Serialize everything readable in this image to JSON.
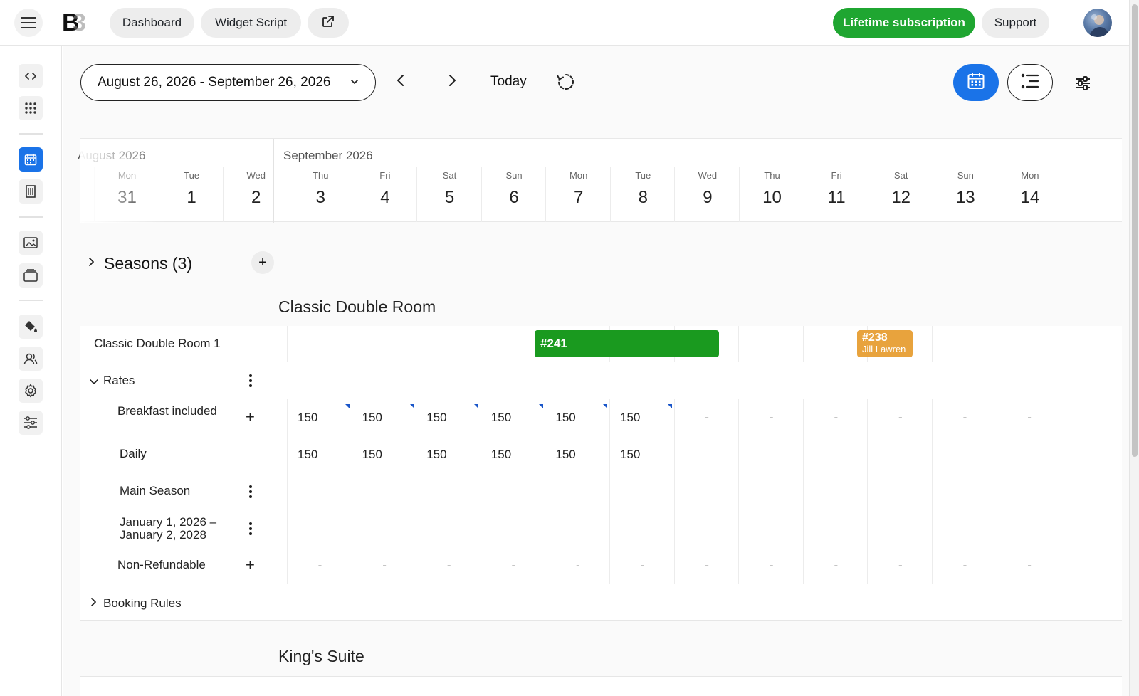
{
  "topbar": {
    "dashboard_label": "Dashboard",
    "widget_label": "Widget Script",
    "subscription_label": "Lifetime subscription",
    "support_label": "Support"
  },
  "toolbar": {
    "date_range": "August 26, 2026 - September 26, 2026",
    "today_label": "Today"
  },
  "calendar": {
    "months": [
      "August 2026",
      "September 2026"
    ],
    "days": [
      {
        "dow": "Mon",
        "num": "31"
      },
      {
        "dow": "Tue",
        "num": "1"
      },
      {
        "dow": "Wed",
        "num": "2"
      },
      {
        "dow": "Thu",
        "num": "3"
      },
      {
        "dow": "Fri",
        "num": "4"
      },
      {
        "dow": "Sat",
        "num": "5"
      },
      {
        "dow": "Sun",
        "num": "6"
      },
      {
        "dow": "Mon",
        "num": "7"
      },
      {
        "dow": "Tue",
        "num": "8"
      },
      {
        "dow": "Wed",
        "num": "9"
      },
      {
        "dow": "Thu",
        "num": "10"
      },
      {
        "dow": "Fri",
        "num": "11"
      },
      {
        "dow": "Sat",
        "num": "12"
      },
      {
        "dow": "Sun",
        "num": "13"
      },
      {
        "dow": "Mon",
        "num": "14"
      }
    ]
  },
  "seasons": {
    "label": "Seasons (3)",
    "add": "+"
  },
  "rooms": [
    {
      "title": "Classic Double Room"
    },
    {
      "title": "King's Suite"
    }
  ],
  "unit": {
    "name": "Classic Double Room 1"
  },
  "bookings": [
    {
      "id": "#241",
      "guest": "",
      "color": "#1a9a1f"
    },
    {
      "id": "#238",
      "guest": "Jill Lawren",
      "color": "#e8a33d"
    }
  ],
  "rates": {
    "label": "Rates",
    "rows": [
      {
        "label": "Breakfast included",
        "action": "+",
        "values": [
          "150",
          "150",
          "150",
          "150",
          "150",
          "150",
          "-",
          "-",
          "-",
          "-",
          "-",
          "-"
        ]
      },
      {
        "label": "Daily",
        "action": "",
        "values": [
          "150",
          "150",
          "150",
          "150",
          "150",
          "150",
          "",
          "",
          "",
          "",
          "",
          ""
        ]
      },
      {
        "label": "Main Season",
        "action": "menu",
        "values": [
          "",
          "",
          "",
          "",
          "",
          "",
          "",
          "",
          "",
          "",
          "",
          ""
        ]
      },
      {
        "label": "January 1, 2026 – January 2, 2028",
        "action": "menu",
        "values": [
          "",
          "",
          "",
          "",
          "",
          "",
          "",
          "",
          "",
          "",
          "",
          ""
        ]
      },
      {
        "label": "Non-Refundable",
        "action": "+",
        "values": [
          "-",
          "-",
          "-",
          "-",
          "-",
          "-",
          "-",
          "-",
          "-",
          "-",
          "-",
          "-"
        ]
      }
    ]
  },
  "booking_rules": {
    "label": "Booking Rules"
  },
  "colors": {
    "accent": "#1a73e8",
    "brand_green": "#1fa631"
  }
}
